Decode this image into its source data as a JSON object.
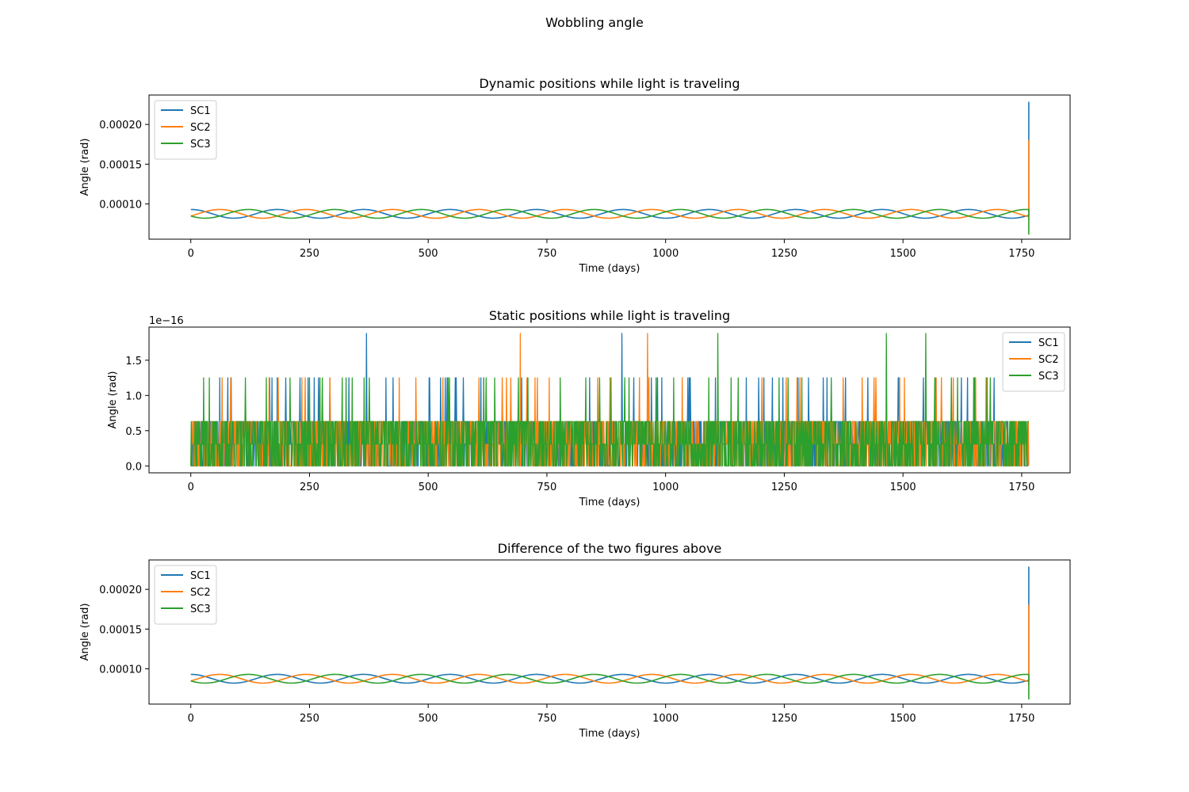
{
  "figure": {
    "suptitle": "Wobbling angle",
    "colors": {
      "SC1": "#1f77b4",
      "SC2": "#ff7f0e",
      "SC3": "#2ca02c"
    }
  },
  "chart_data": [
    {
      "type": "line",
      "title": "Dynamic positions while light is traveling",
      "xlabel": "Time (days)",
      "ylabel": "Angle (rad)",
      "xlim": [
        -88,
        1852
      ],
      "ylim": [
        5.56e-05,
        0.000237
      ],
      "xticks": [
        0,
        250,
        500,
        750,
        1000,
        1250,
        1500,
        1750
      ],
      "xtick_labels": [
        "0",
        "250",
        "500",
        "750",
        "1000",
        "1250",
        "1500",
        "1750"
      ],
      "yticks": [
        0.0001,
        0.00015,
        0.0002
      ],
      "ytick_labels": [
        "0.00010",
        "0.00015",
        "0.00020"
      ],
      "offset_text": "",
      "legend": {
        "placement": "upper left",
        "entries": [
          "SC1",
          "SC2",
          "SC3"
        ]
      },
      "series": [
        {
          "name": "SC1",
          "mode": "sinusoid",
          "x_start": 0,
          "x_end": 1765,
          "mean": 8.75e-05,
          "amplitude": 5.5e-06,
          "period_days": 182,
          "phase_days": 0,
          "end_values": [
            0.000228,
            0.00018
          ]
        },
        {
          "name": "SC2",
          "mode": "sinusoid",
          "x_start": 0,
          "x_end": 1765,
          "mean": 8.75e-05,
          "amplitude": 5.5e-06,
          "period_days": 182,
          "phase_days": 60.7,
          "end_values": [
            0.00018,
            8e-05
          ]
        },
        {
          "name": "SC3",
          "mode": "sinusoid",
          "x_start": 0,
          "x_end": 1765,
          "mean": 8.75e-05,
          "amplitude": 5.5e-06,
          "period_days": 182,
          "phase_days": 121.3,
          "end_values": [
            6.2e-05,
            9e-05
          ]
        }
      ],
      "grid": false
    },
    {
      "type": "line",
      "title": "Static positions while light is traveling",
      "xlabel": "Time (days)",
      "ylabel": "Angle (rad)",
      "xlim": [
        -88,
        1852
      ],
      "ylim": [
        -0.098,
        1.97
      ],
      "xticks": [
        0,
        250,
        500,
        750,
        1000,
        1250,
        1500,
        1750
      ],
      "xtick_labels": [
        "0",
        "250",
        "500",
        "750",
        "1000",
        "1250",
        "1500",
        "1750"
      ],
      "yticks": [
        0.0,
        0.5,
        1.0,
        1.5
      ],
      "ytick_labels": [
        "0.0",
        "0.5",
        "1.0",
        "1.5"
      ],
      "offset_text": "1e−16",
      "legend": {
        "placement": "upper right",
        "entries": [
          "SC1",
          "SC2",
          "SC3"
        ]
      },
      "series": [
        {
          "name": "SC1",
          "mode": "noise",
          "x_start": 0,
          "x_end": 1765,
          "levels": [
            0.0,
            0.31,
            0.63,
            1.25,
            1.88
          ],
          "spikes_188": [
            370,
            908
          ],
          "seed": 11
        },
        {
          "name": "SC2",
          "mode": "noise",
          "x_start": 0,
          "x_end": 1765,
          "levels": [
            0.0,
            0.31,
            0.63,
            1.25,
            1.88
          ],
          "spikes_188": [
            694,
            962
          ],
          "seed": 23
        },
        {
          "name": "SC3",
          "mode": "noise",
          "x_start": 0,
          "x_end": 1765,
          "levels": [
            0.0,
            0.31,
            0.63,
            1.25,
            1.88
          ],
          "spikes_188": [
            1110,
            1465,
            1548
          ],
          "seed": 37
        }
      ],
      "grid": false
    },
    {
      "type": "line",
      "title": "Difference of the two figures above",
      "xlabel": "Time (days)",
      "ylabel": "Angle (rad)",
      "xlim": [
        -88,
        1852
      ],
      "ylim": [
        5.56e-05,
        0.000237
      ],
      "xticks": [
        0,
        250,
        500,
        750,
        1000,
        1250,
        1500,
        1750
      ],
      "xtick_labels": [
        "0",
        "250",
        "500",
        "750",
        "1000",
        "1250",
        "1500",
        "1750"
      ],
      "yticks": [
        0.0001,
        0.00015,
        0.0002
      ],
      "ytick_labels": [
        "0.00010",
        "0.00015",
        "0.00020"
      ],
      "offset_text": "",
      "legend": {
        "placement": "upper left",
        "entries": [
          "SC1",
          "SC2",
          "SC3"
        ]
      },
      "series": [
        {
          "name": "SC1",
          "mode": "sinusoid",
          "x_start": 0,
          "x_end": 1765,
          "mean": 8.75e-05,
          "amplitude": 5.5e-06,
          "period_days": 182,
          "phase_days": 0,
          "end_values": [
            0.000228,
            0.00018
          ]
        },
        {
          "name": "SC2",
          "mode": "sinusoid",
          "x_start": 0,
          "x_end": 1765,
          "mean": 8.75e-05,
          "amplitude": 5.5e-06,
          "period_days": 182,
          "phase_days": 60.7,
          "end_values": [
            0.00018,
            8e-05
          ]
        },
        {
          "name": "SC3",
          "mode": "sinusoid",
          "x_start": 0,
          "x_end": 1765,
          "mean": 8.75e-05,
          "amplitude": 5.5e-06,
          "period_days": 182,
          "phase_days": 121.3,
          "end_values": [
            6.2e-05,
            9e-05
          ]
        }
      ],
      "grid": false
    }
  ]
}
